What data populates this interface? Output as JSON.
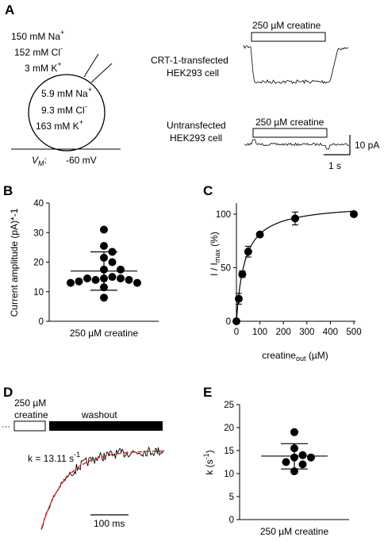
{
  "panel_a": {
    "letter": "A",
    "outside": [
      "150 mM Na",
      "152 mM Cl",
      "3 mM K"
    ],
    "outside_sup": [
      "+",
      "-",
      "+"
    ],
    "inside": [
      "5.9 mM Na",
      "9.3 mM Cl",
      "163 mM K"
    ],
    "inside_sup": [
      "+",
      "-",
      "+"
    ],
    "vm_label": "V",
    "vm_sub": "M",
    "vm_colon": ":",
    "vm_value": "-60 mV",
    "trace1_label": [
      "CRT-1-transfected",
      "HEK293 cell"
    ],
    "trace2_label": [
      "Untransfected",
      "HEK293 cell"
    ],
    "bar_label": "250 µM creatine",
    "scale_current": "10 pA",
    "scale_time": "1 s"
  },
  "panel_d": {
    "letter": "D",
    "creatine_label": [
      "250 µM",
      "creatine"
    ],
    "washout_label": "washout",
    "k_label": "k = 13.11 s",
    "k_sup": "-1",
    "scale_time": "100 ms",
    "colors": {
      "trace": "#000000",
      "fit": "#e53935"
    }
  },
  "chart_data": [
    {
      "panel": "B",
      "type": "scatter",
      "ylabel": "Current amplitude (pA)*-1",
      "ylim": [
        0,
        40
      ],
      "yticks": [
        0,
        10,
        20,
        30,
        40
      ],
      "categories": [
        "250 µM creatine"
      ],
      "values": [
        31,
        25.5,
        23.5,
        21.5,
        20,
        17.5,
        17.5,
        15,
        14.5,
        14.5,
        14.5,
        14,
        14,
        13.5,
        13,
        13,
        11.5,
        8
      ],
      "mean": 17,
      "sd_upper": 23.5,
      "sd_lower": 10.5
    },
    {
      "panel": "C",
      "type": "line",
      "ylabel": "I / I",
      "ylabel_sub": "max",
      "ylabel_suffix": " (%)",
      "xlabel": "creatine",
      "xlabel_sub": "out",
      "xlabel_suffix": " (µM)",
      "xlim": [
        0,
        500
      ],
      "ylim": [
        0,
        100
      ],
      "xticks": [
        0,
        100,
        200,
        300,
        400,
        500
      ],
      "yticks": [
        0,
        50,
        100
      ],
      "x": [
        0,
        10,
        25,
        50,
        100,
        250,
        500
      ],
      "y": [
        0,
        21,
        44,
        65,
        81,
        96,
        100
      ],
      "err": [
        0,
        5,
        3,
        5,
        2,
        6,
        0
      ],
      "fit": {
        "vmax": 110,
        "km": 35
      }
    },
    {
      "panel": "E",
      "type": "scatter",
      "ylabel": "k (s",
      "ylabel_sup": "-1",
      "ylabel_suffix": ")",
      "ylim": [
        0,
        25
      ],
      "yticks": [
        0,
        5,
        10,
        15,
        20,
        25
      ],
      "categories": [
        "250 µM creatine"
      ],
      "values": [
        19,
        15.5,
        14,
        13.5,
        13.5,
        12.5,
        12,
        10.5
      ],
      "mean": 13.8,
      "sd_upper": 16.5,
      "sd_lower": 11
    }
  ],
  "panel_letters": {
    "b": "B",
    "c": "C",
    "e": "E"
  }
}
